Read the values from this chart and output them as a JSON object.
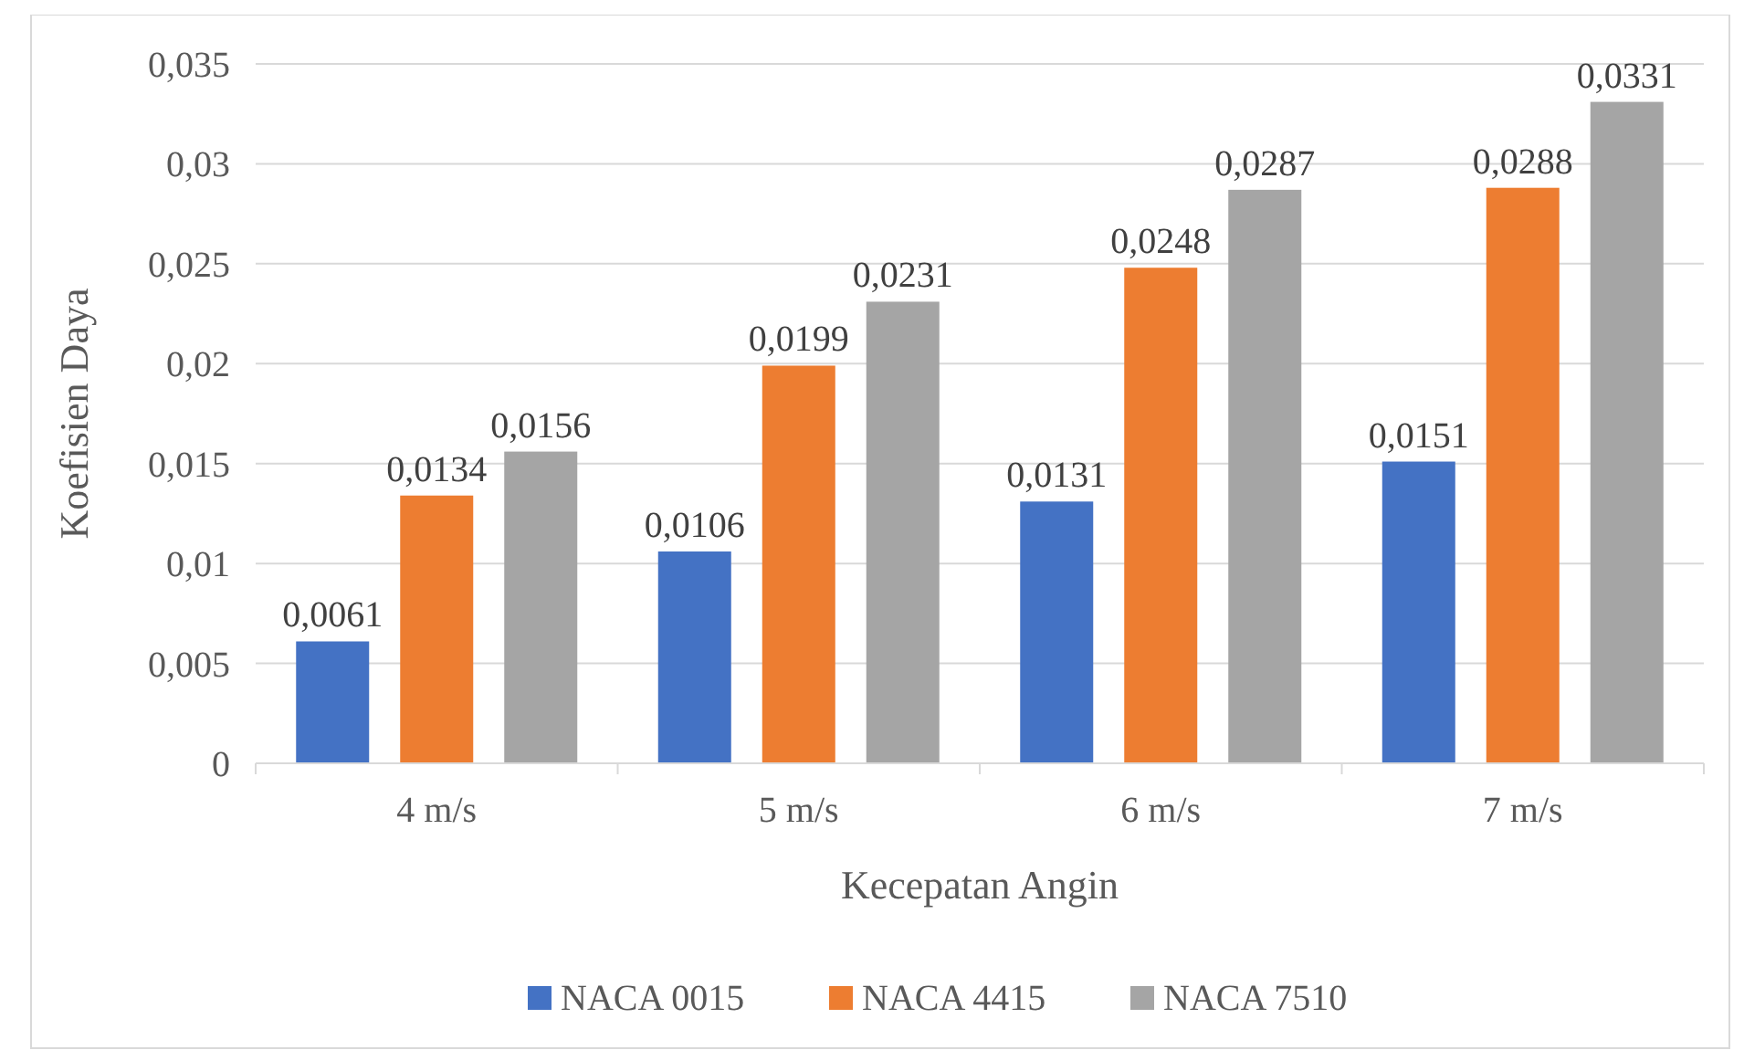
{
  "chart_data": {
    "type": "bar",
    "xlabel": "Kecepatan Angin",
    "ylabel": "Koefisien Daya",
    "categories": [
      "4 m/s",
      "5 m/s",
      "6 m/s",
      "7 m/s"
    ],
    "series": [
      {
        "name": "NACA 0015",
        "color": "#4472c4",
        "values": [
          0.0061,
          0.0106,
          0.0131,
          0.0151
        ],
        "value_labels": [
          "0,0061",
          "0,0106",
          "0,0131",
          "0,0151"
        ]
      },
      {
        "name": "NACA 4415",
        "color": "#ed7d31",
        "values": [
          0.0134,
          0.0199,
          0.0248,
          0.0288
        ],
        "value_labels": [
          "0,0134",
          "0,0199",
          "0,0248",
          "0,0288"
        ]
      },
      {
        "name": "NACA 7510",
        "color": "#a5a5a5",
        "values": [
          0.0156,
          0.0231,
          0.0287,
          0.0331
        ],
        "value_labels": [
          "0,0156",
          "0,0231",
          "0,0287",
          "0,0331"
        ]
      }
    ],
    "ylim": [
      0,
      0.035
    ],
    "yticks": [
      {
        "value": 0,
        "label": "0"
      },
      {
        "value": 0.005,
        "label": "0,005"
      },
      {
        "value": 0.01,
        "label": "0,01"
      },
      {
        "value": 0.015,
        "label": "0,015"
      },
      {
        "value": 0.02,
        "label": "0,02"
      },
      {
        "value": 0.025,
        "label": "0,025"
      },
      {
        "value": 0.03,
        "label": "0,03"
      },
      {
        "value": 0.035,
        "label": "0,035"
      }
    ],
    "grid": "y",
    "legend": "bottom"
  }
}
